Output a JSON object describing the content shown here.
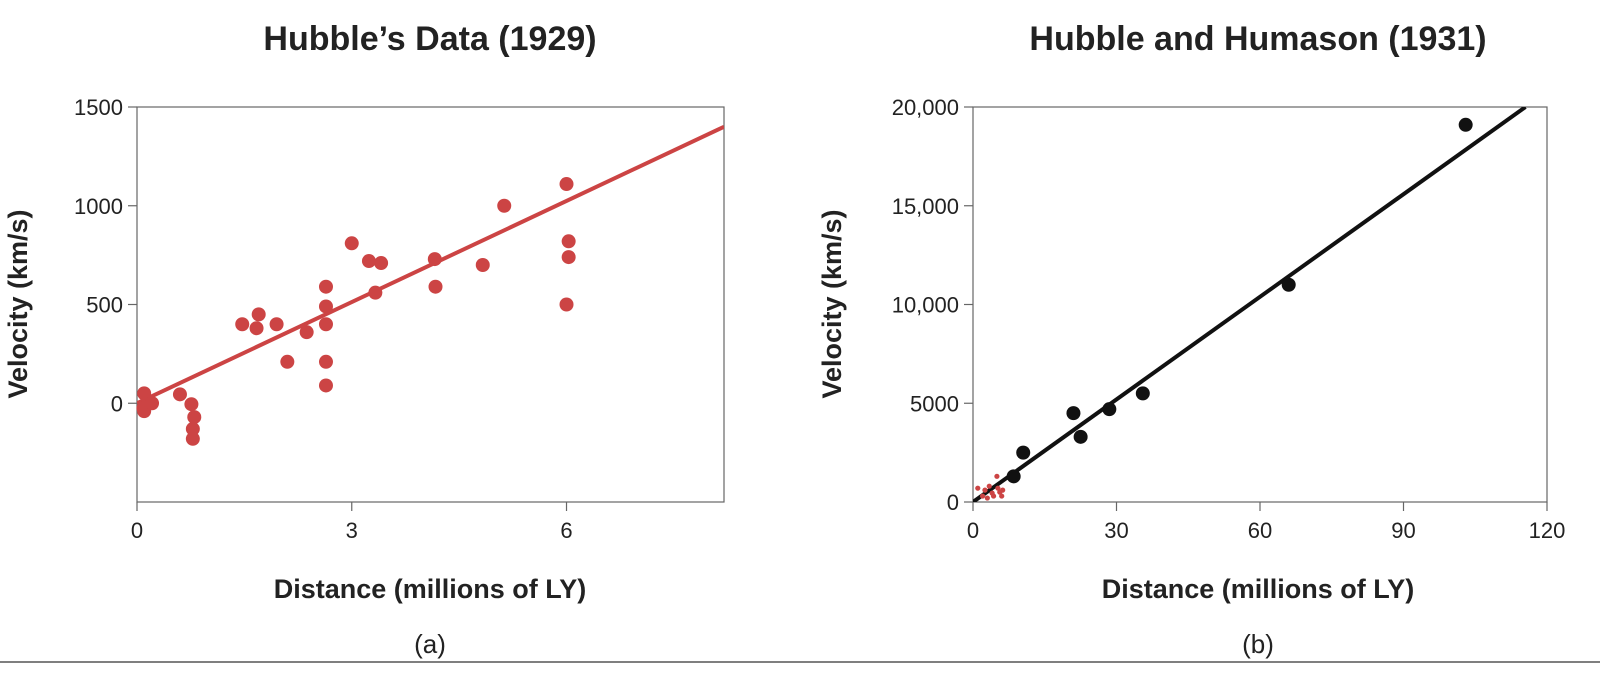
{
  "figure": {
    "panel_a_caption": "(a)",
    "panel_b_caption": "(b)"
  },
  "chart_data": [
    {
      "type": "scatter",
      "title": "Hubble’s Data (1929)",
      "xlabel": "Distance (millions of LY)",
      "ylabel": "Velocity (km/s)",
      "xlim": [
        0,
        8.2
      ],
      "ylim": [
        -500,
        1500
      ],
      "x_ticks": [
        0,
        3,
        6
      ],
      "x_tick_labels": [
        "0",
        "3",
        "6"
      ],
      "y_ticks": [
        0,
        500,
        1000,
        1500
      ],
      "y_tick_labels": [
        "0",
        "500",
        "1000",
        "1500"
      ],
      "grid": false,
      "point_color": "#cc4444",
      "series": [
        {
          "points": [
            [
              0.1,
              50
            ],
            [
              0.09,
              -25
            ],
            [
              0.1,
              -40
            ],
            [
              0.21,
              0
            ],
            [
              0.6,
              45
            ],
            [
              0.76,
              -5
            ],
            [
              0.8,
              -70
            ],
            [
              0.78,
              -130
            ],
            [
              0.78,
              -180
            ],
            [
              1.47,
              400
            ],
            [
              1.67,
              380
            ],
            [
              1.7,
              450
            ],
            [
              1.95,
              400
            ],
            [
              2.1,
              210
            ],
            [
              2.37,
              360
            ],
            [
              2.64,
              590
            ],
            [
              2.64,
              490
            ],
            [
              2.64,
              400
            ],
            [
              2.64,
              210
            ],
            [
              2.64,
              90
            ],
            [
              3.0,
              810
            ],
            [
              3.24,
              720
            ],
            [
              3.33,
              560
            ],
            [
              3.41,
              710
            ],
            [
              4.16,
              730
            ],
            [
              4.17,
              590
            ],
            [
              4.83,
              700
            ],
            [
              5.13,
              1000
            ],
            [
              6.0,
              1110
            ],
            [
              6.03,
              820
            ],
            [
              6.03,
              740
            ],
            [
              6.0,
              500
            ]
          ]
        }
      ],
      "fit_line": {
        "color": "#cc4444",
        "x": [
          0,
          8.2
        ],
        "y": [
          0,
          1400
        ]
      }
    },
    {
      "type": "scatter",
      "title": "Hubble and Humason (1931)",
      "xlabel": "Distance (millions of LY)",
      "ylabel": "Velocity (km/s)",
      "xlim": [
        0,
        120
      ],
      "ylim": [
        0,
        20000
      ],
      "x_ticks": [
        0,
        30,
        60,
        90,
        120
      ],
      "x_tick_labels": [
        "0",
        "30",
        "60",
        "90",
        "120"
      ],
      "y_ticks": [
        0,
        5000,
        10000,
        15000,
        20000
      ],
      "y_tick_labels": [
        "0",
        "5000",
        "10,000",
        "15,000",
        "20,000"
      ],
      "grid": false,
      "point_color": "#111111",
      "series": [
        {
          "points": [
            [
              8.5,
              1300
            ],
            [
              10.5,
              2500
            ],
            [
              21,
              4500
            ],
            [
              22.5,
              3300
            ],
            [
              28.5,
              4700
            ],
            [
              35.5,
              5500
            ],
            [
              66,
              11000
            ],
            [
              103,
              19100
            ]
          ]
        }
      ],
      "small_series": {
        "color": "#cc4444",
        "points": [
          [
            1,
            700
          ],
          [
            2,
            300
          ],
          [
            2.5,
            600
          ],
          [
            3,
            200
          ],
          [
            3.4,
            800
          ],
          [
            4,
            450
          ],
          [
            4.3,
            300
          ],
          [
            5,
            1300
          ],
          [
            5.2,
            700
          ],
          [
            5.6,
            500
          ],
          [
            6,
            300
          ],
          [
            6.2,
            600
          ]
        ]
      },
      "fit_line": {
        "color": "#111111",
        "x": [
          0,
          115.5
        ],
        "y": [
          0,
          20000
        ]
      }
    }
  ]
}
